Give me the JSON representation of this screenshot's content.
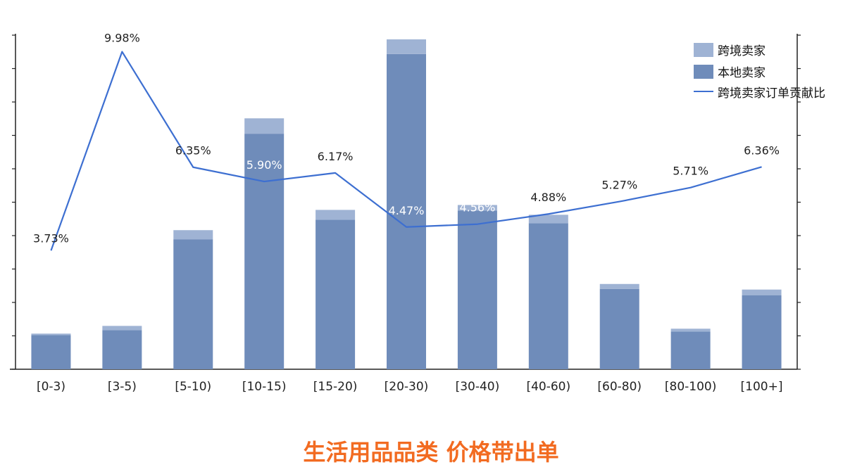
{
  "chart_data": {
    "type": "bar",
    "title": "生活用品品类 价格带出单",
    "categories": [
      "[0-3)",
      "[3-5)",
      "[5-10)",
      "[10-15)",
      "[15-20)",
      "[20-30)",
      "[30-40)",
      "[40-60)",
      "[60-80)",
      "[80-100)",
      "[100+]"
    ],
    "series": [
      {
        "name": "本地卖家",
        "kind": "bar-stack-bottom",
        "color": "#6f8cba",
        "values": [
          49,
          56,
          186,
          337,
          214,
          451,
          227,
          209,
          115,
          54,
          106
        ]
      },
      {
        "name": "跨境卖家",
        "kind": "bar-stack-top",
        "color": "#9fb3d4",
        "values": [
          2,
          6,
          13,
          22,
          14,
          21,
          8,
          12,
          7,
          4,
          8
        ]
      },
      {
        "name": "跨境卖家订单贡献比",
        "kind": "line",
        "axis": "secondary",
        "color": "#3d6fd1",
        "values": [
          3.73,
          9.98,
          6.35,
          5.9,
          6.17,
          4.47,
          4.56,
          4.88,
          5.27,
          5.71,
          6.36
        ],
        "labels": [
          "3.73%",
          "9.98%",
          "6.35%",
          "5.90%",
          "6.17%",
          "4.47%",
          "4.56%",
          "4.88%",
          "5.27%",
          "5.71%",
          "6.36%"
        ]
      }
    ],
    "ylim": [
      0,
      478
    ],
    "y2lim": [
      0,
      10.5
    ],
    "legend_position": "top-right",
    "colors": {
      "title": "#f26b21",
      "axis": "#222222"
    }
  }
}
